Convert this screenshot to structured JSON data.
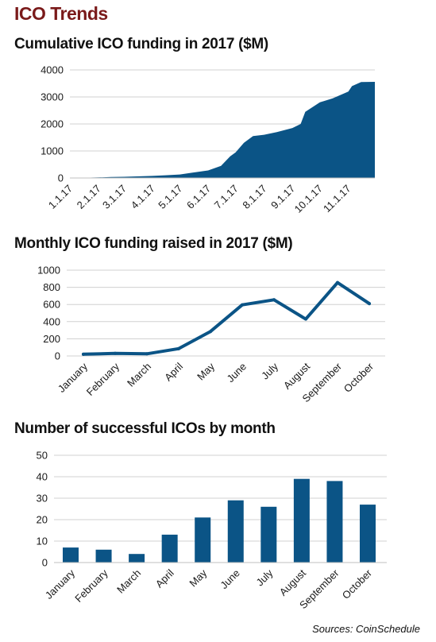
{
  "title": "ICO Trends",
  "source": "Sources: CoinSchedule",
  "colors": {
    "series": "#0b5486",
    "title": "#7a1a1a"
  },
  "chart_data": [
    {
      "type": "area",
      "title": "Cumulative ICO funding in 2017 ($M)",
      "x": [
        "1.1.17",
        "2.1.17",
        "3.1.17",
        "4.1.17",
        "5.1.17",
        "6.1.17",
        "7.1.17",
        "8.1.17",
        "9.1.17",
        "10.1.17",
        "11.1.17"
      ],
      "ylim": [
        0,
        4000
      ],
      "yticks": [
        0,
        1000,
        2000,
        3000,
        4000
      ],
      "grid": true,
      "series": [
        {
          "points": [
            [
              "1.1.17",
              0
            ],
            [
              "1.15.17",
              5
            ],
            [
              "2.1.17",
              20
            ],
            [
              "2.15.17",
              35
            ],
            [
              "3.1.17",
              45
            ],
            [
              "3.15.17",
              60
            ],
            [
              "4.1.17",
              75
            ],
            [
              "4.15.17",
              100
            ],
            [
              "5.1.17",
              130
            ],
            [
              "5.15.17",
              200
            ],
            [
              "6.1.17",
              280
            ],
            [
              "6.15.17",
              450
            ],
            [
              "6.25.17",
              800
            ],
            [
              "7.1.17",
              950
            ],
            [
              "7.10.17",
              1300
            ],
            [
              "7.20.17",
              1550
            ],
            [
              "8.1.17",
              1600
            ],
            [
              "8.15.17",
              1700
            ],
            [
              "9.1.17",
              1850
            ],
            [
              "9.10.17",
              2000
            ],
            [
              "9.15.17",
              2450
            ],
            [
              "10.1.17",
              2800
            ],
            [
              "10.15.17",
              2950
            ],
            [
              "11.1.17",
              3200
            ],
            [
              "11.5.17",
              3400
            ],
            [
              "11.15.17",
              3550
            ],
            [
              "11.30.17",
              3560
            ]
          ]
        }
      ]
    },
    {
      "type": "line",
      "title": "Monthly ICO funding raised in 2017 ($M)",
      "categories": [
        "January",
        "February",
        "March",
        "April",
        "May",
        "June",
        "July",
        "August",
        "September",
        "October"
      ],
      "ylim": [
        0,
        1000
      ],
      "yticks": [
        0,
        200,
        400,
        600,
        800,
        1000
      ],
      "grid": true,
      "series": [
        {
          "values": [
            20,
            30,
            25,
            85,
            285,
            595,
            655,
            430,
            855,
            610
          ]
        }
      ]
    },
    {
      "type": "bar",
      "title": "Number of successful ICOs by month",
      "categories": [
        "January",
        "February",
        "March",
        "April",
        "May",
        "June",
        "July",
        "August",
        "September",
        "October"
      ],
      "ylim": [
        0,
        50
      ],
      "yticks": [
        0,
        10,
        20,
        30,
        40,
        50
      ],
      "grid": true,
      "series": [
        {
          "values": [
            7,
            6,
            4,
            13,
            21,
            29,
            26,
            39,
            38,
            27
          ]
        }
      ]
    }
  ]
}
